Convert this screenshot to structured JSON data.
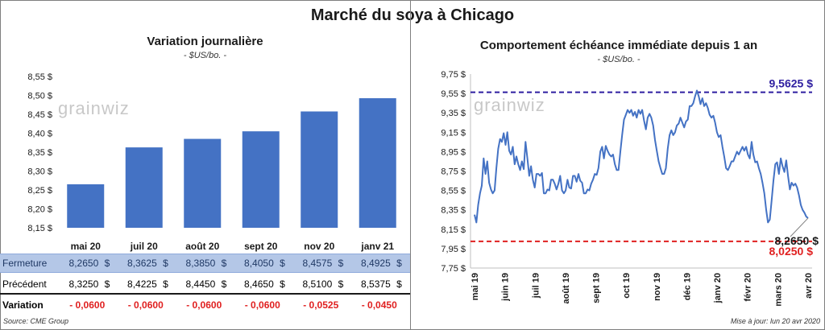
{
  "title": "Marché du soya à Chicago",
  "left": {
    "title": "Variation  journalière",
    "subtitle": "- $US/bo. -",
    "logo": "grainwiz"
  },
  "right": {
    "title": "Comportement  échéance  immédiate  depuis  1  an",
    "subtitle": "- $US/bo. -",
    "logo": "grainwiz",
    "ref_high_label": "9,5625  $",
    "ref_low_label": "8,0250  $",
    "last_label": "8,2650 $"
  },
  "table": {
    "rows": [
      {
        "label": "Fermeture",
        "values": [
          "8,2650",
          "8,3625",
          "8,3850",
          "8,4050",
          "8,4575",
          "8,4925"
        ]
      },
      {
        "label": "Précédent",
        "values": [
          "8,3250",
          "8,4225",
          "8,4450",
          "8,4650",
          "8,5100",
          "8,5375"
        ]
      },
      {
        "label": "Variation",
        "values": [
          "- 0,0600",
          "- 0,0600",
          "- 0,0600",
          "- 0,0600",
          "- 0,0525",
          "- 0,0450"
        ]
      }
    ],
    "currency": "$"
  },
  "footer": {
    "source": "Source: CME Group",
    "updated": "Mise à jour: lun 20 avr 2020"
  },
  "colors": {
    "bar": "#4472c4",
    "line": "#4472c4",
    "high_ref": "#2e1ea0",
    "low_ref": "#e02020",
    "negative": "#e02020",
    "highlight_row": "#b4c7e7"
  },
  "chart_data": [
    {
      "type": "bar",
      "categories": [
        "mai 20",
        "juil 20",
        "août 20",
        "sept 20",
        "nov 20",
        "janv 21"
      ],
      "values": [
        8.265,
        8.3625,
        8.385,
        8.405,
        8.4575,
        8.4925
      ],
      "yticks": [
        "8,15 $",
        "8,20 $",
        "8,25 $",
        "8,30 $",
        "8,35 $",
        "8,40 $",
        "8,45 $",
        "8,50 $",
        "8,55 $"
      ],
      "ylim": [
        8.15,
        8.55
      ],
      "grid": false
    },
    {
      "type": "line",
      "xlabels": [
        "mai 19",
        "juin 19",
        "juil 19",
        "août 19",
        "sept 19",
        "oct 19",
        "nov 19",
        "déc 19",
        "janv 20",
        "févr 20",
        "mars 20",
        "avr 20"
      ],
      "yticks": [
        "7,75 $",
        "7,95 $",
        "8,15 $",
        "8,35 $",
        "8,55 $",
        "8,75 $",
        "8,95 $",
        "9,15 $",
        "9,35 $",
        "9,55 $",
        "9,75 $"
      ],
      "ylim": [
        7.75,
        9.75
      ],
      "ref_high": 9.5625,
      "ref_low": 8.025,
      "last": 8.265,
      "grid": false,
      "series": [
        {
          "values": [
            8.3,
            8.22,
            8.4,
            8.52,
            8.6,
            8.88,
            8.72,
            8.85,
            8.63,
            8.56,
            8.52,
            8.55,
            8.78,
            8.98,
            9.08,
            9.05,
            9.14,
            9.02,
            9.15,
            8.96,
            8.92,
            9.0,
            8.82,
            8.9,
            8.82,
            8.76,
            8.85,
            8.77,
            9.05,
            8.88,
            8.7,
            8.8,
            8.66,
            8.58,
            8.72,
            8.72,
            8.7,
            8.73,
            8.52,
            8.52,
            8.56,
            8.55,
            8.66,
            8.66,
            8.62,
            8.56,
            8.62,
            8.7,
            8.55,
            8.52,
            8.55,
            8.66,
            8.58,
            8.57,
            8.7,
            8.7,
            8.64,
            8.72,
            8.65,
            8.63,
            8.52,
            8.52,
            8.56,
            8.55,
            8.62,
            8.66,
            8.72,
            8.71,
            8.78,
            8.95,
            9.0,
            8.88,
            9.01,
            8.96,
            8.92,
            8.9,
            8.92,
            8.82,
            8.76,
            8.76,
            8.95,
            9.12,
            9.28,
            9.33,
            9.38,
            9.35,
            9.38,
            9.32,
            9.36,
            9.3,
            9.38,
            9.34,
            9.38,
            9.27,
            9.18,
            9.3,
            9.34,
            9.3,
            9.22,
            9.07,
            8.96,
            8.85,
            8.78,
            8.72,
            8.72,
            8.78,
            8.98,
            9.12,
            9.17,
            9.12,
            9.15,
            9.22,
            9.24,
            9.3,
            9.25,
            9.2,
            9.26,
            9.28,
            9.42,
            9.42,
            9.45,
            9.52,
            9.58,
            9.52,
            9.44,
            9.5,
            9.42,
            9.45,
            9.4,
            9.33,
            9.3,
            9.32,
            9.25,
            9.15,
            9.1,
            9.12,
            9.0,
            8.9,
            8.78,
            8.76,
            8.8,
            8.85,
            8.85,
            8.9,
            8.95,
            8.92,
            8.96,
            9.0,
            8.96,
            9.0,
            8.92,
            8.88,
            9.05,
            8.92,
            8.84,
            8.85,
            8.78,
            8.72,
            8.63,
            8.52,
            8.35,
            8.22,
            8.25,
            8.45,
            8.65,
            8.82,
            8.84,
            8.72,
            8.88,
            8.8,
            8.74,
            8.86,
            8.7,
            8.56,
            8.63,
            8.6,
            8.62,
            8.58,
            8.5,
            8.4,
            8.35,
            8.32,
            8.28,
            8.265
          ]
        }
      ]
    }
  ]
}
